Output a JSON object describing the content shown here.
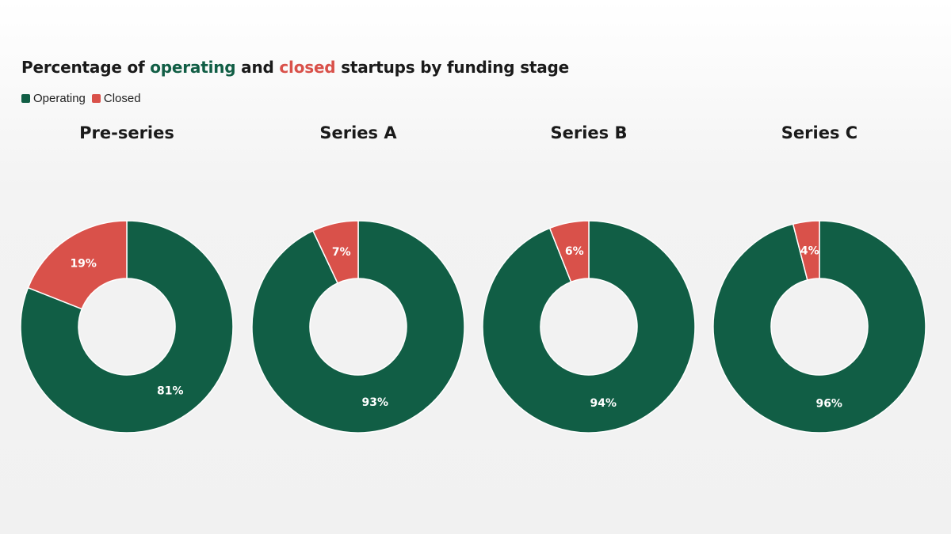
{
  "title": {
    "prefix": "Percentage of ",
    "word1": "operating",
    "middle": " and ",
    "word2": "closed",
    "suffix": " startups by funding stage"
  },
  "colors": {
    "operating": "#115e45",
    "closed": "#d9514a"
  },
  "legend": {
    "operating": "Operating",
    "closed": "Closed"
  },
  "chart_data": [
    {
      "type": "pie",
      "variant": "donut",
      "title": "Pre-series",
      "slices": [
        {
          "label": "Operating",
          "value": 81,
          "display": "81%"
        },
        {
          "label": "Closed",
          "value": 19,
          "display": "19%"
        }
      ]
    },
    {
      "type": "pie",
      "variant": "donut",
      "title": "Series A",
      "slices": [
        {
          "label": "Operating",
          "value": 93,
          "display": "93%"
        },
        {
          "label": "Closed",
          "value": 7,
          "display": "7%"
        }
      ]
    },
    {
      "type": "pie",
      "variant": "donut",
      "title": "Series B",
      "slices": [
        {
          "label": "Operating",
          "value": 94,
          "display": "94%"
        },
        {
          "label": "Closed",
          "value": 6,
          "display": "6%"
        }
      ]
    },
    {
      "type": "pie",
      "variant": "donut",
      "title": "Series C",
      "slices": [
        {
          "label": "Operating",
          "value": 96,
          "display": "96%"
        },
        {
          "label": "Closed",
          "value": 4,
          "display": "4%"
        }
      ]
    }
  ]
}
